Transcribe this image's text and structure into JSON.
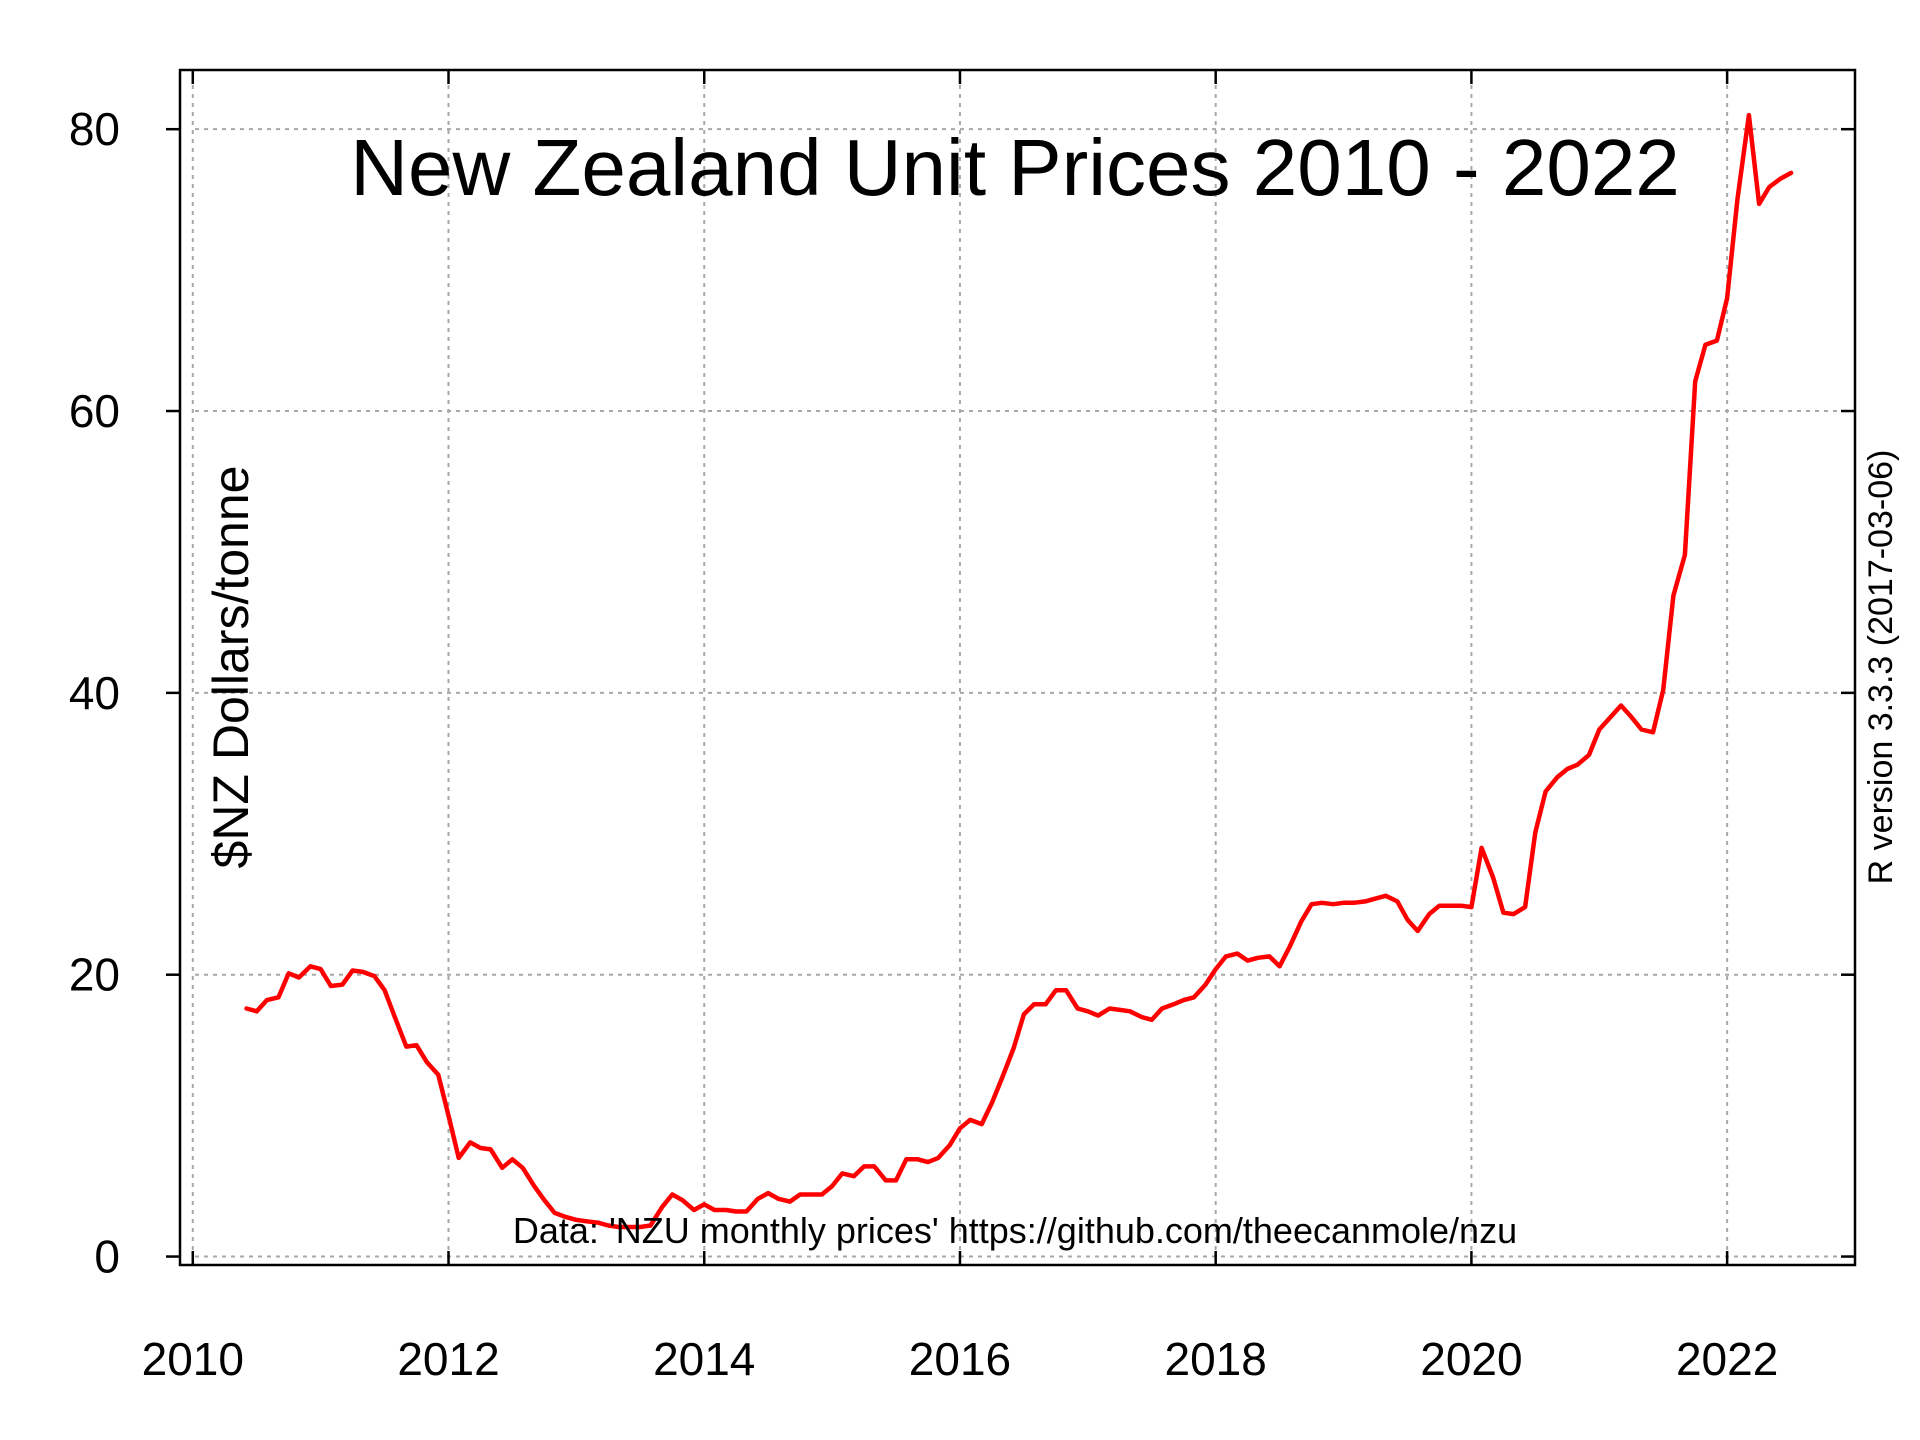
{
  "chart_data": {
    "type": "line",
    "title": "New Zealand Unit Prices 2010 - 2022",
    "xlabel": "",
    "ylabel": "$NZ Dollars/tonne",
    "side_note": "R version 3.3.3 (2017-03-06)",
    "source_note": "Data: 'NZU monthly prices' https://github.com/theecanmole/nzu",
    "xlim": [
      2009.9,
      2023.0
    ],
    "ylim": [
      -0.6,
      84.2
    ],
    "x_ticks": [
      2010,
      2012,
      2014,
      2016,
      2018,
      2020,
      2022
    ],
    "x_tick_labels": [
      "2010",
      "2012",
      "2014",
      "2016",
      "2018",
      "2020",
      "2022"
    ],
    "y_ticks": [
      0,
      20,
      40,
      60,
      80
    ],
    "y_tick_labels": [
      "0",
      "20",
      "40",
      "60",
      "80"
    ],
    "grid": true,
    "line_color": "#ff0000",
    "series": [
      {
        "x": [
          2010.42,
          2010.5,
          2010.58,
          2010.67,
          2010.75,
          2010.83,
          2010.92,
          2011.0,
          2011.08,
          2011.17,
          2011.25,
          2011.33,
          2011.42,
          2011.5,
          2011.58,
          2011.67,
          2011.75,
          2011.83,
          2011.92,
          2012.0,
          2012.08,
          2012.17,
          2012.25,
          2012.33,
          2012.42,
          2012.5,
          2012.58,
          2012.67,
          2012.75,
          2012.83,
          2012.92,
          2013.0,
          2013.08,
          2013.17,
          2013.25,
          2013.33,
          2013.42,
          2013.5,
          2013.58,
          2013.67,
          2013.75,
          2013.83,
          2013.92,
          2014.0,
          2014.08,
          2014.17,
          2014.25,
          2014.33,
          2014.42,
          2014.5,
          2014.58,
          2014.67,
          2014.75,
          2014.83,
          2014.92,
          2015.0,
          2015.08,
          2015.17,
          2015.25,
          2015.33,
          2015.42,
          2015.5,
          2015.58,
          2015.67,
          2015.75,
          2015.83,
          2015.92,
          2016.0,
          2016.08,
          2016.17,
          2016.25,
          2016.33,
          2016.42,
          2016.5,
          2016.58,
          2016.67,
          2016.75,
          2016.83,
          2016.92,
          2017.0,
          2017.08,
          2017.17,
          2017.25,
          2017.33,
          2017.42,
          2017.5,
          2017.58,
          2017.67,
          2017.75,
          2017.83,
          2017.92,
          2018.0,
          2018.08,
          2018.17,
          2018.25,
          2018.33,
          2018.42,
          2018.5,
          2018.58,
          2018.67,
          2018.75,
          2018.83,
          2018.92,
          2019.0,
          2019.08,
          2019.17,
          2019.25,
          2019.33,
          2019.42,
          2019.5,
          2019.58,
          2019.67,
          2019.75,
          2019.83,
          2019.92,
          2020.0,
          2020.08,
          2020.17,
          2020.25,
          2020.33,
          2020.42,
          2020.5,
          2020.58,
          2020.67,
          2020.75,
          2020.83,
          2020.92,
          2021.0,
          2021.08,
          2021.17,
          2021.25,
          2021.33,
          2021.42,
          2021.5,
          2021.58,
          2021.67,
          2021.75,
          2021.83,
          2021.92,
          2022.0,
          2022.08,
          2022.17,
          2022.25,
          2022.33,
          2022.42,
          2022.5
        ],
        "y": [
          17.6,
          17.4,
          18.2,
          18.4,
          20.1,
          19.8,
          20.6,
          20.4,
          19.2,
          19.3,
          20.3,
          20.2,
          19.9,
          18.9,
          17.0,
          14.9,
          15.0,
          13.8,
          12.9,
          10.0,
          7.0,
          8.1,
          7.7,
          7.6,
          6.3,
          6.9,
          6.3,
          5.0,
          4.0,
          3.1,
          2.8,
          2.6,
          2.5,
          2.4,
          2.2,
          2.1,
          2.1,
          2.1,
          2.2,
          3.5,
          4.4,
          4.0,
          3.3,
          3.7,
          3.3,
          3.3,
          3.2,
          3.2,
          4.1,
          4.5,
          4.1,
          3.9,
          4.4,
          4.4,
          4.4,
          5.0,
          5.9,
          5.7,
          6.4,
          6.4,
          5.4,
          5.4,
          6.9,
          6.9,
          6.7,
          7.0,
          7.9,
          9.1,
          9.7,
          9.4,
          10.9,
          12.7,
          14.8,
          17.2,
          17.9,
          17.9,
          18.9,
          18.9,
          17.6,
          17.4,
          17.1,
          17.6,
          17.5,
          17.4,
          17.0,
          16.8,
          17.6,
          17.9,
          18.2,
          18.4,
          19.3,
          20.4,
          21.3,
          21.5,
          21.0,
          21.2,
          21.3,
          20.6,
          22.0,
          23.8,
          25.0,
          25.1,
          25.0,
          25.1,
          25.1,
          25.2,
          25.4,
          25.6,
          25.2,
          23.9,
          23.1,
          24.3,
          24.9,
          24.9,
          24.9,
          24.8,
          29.0,
          26.9,
          24.4,
          24.3,
          24.8,
          30.1,
          33.0,
          34.0,
          34.6,
          34.9,
          35.6,
          37.4,
          38.2,
          39.1,
          38.3,
          37.4,
          37.2,
          40.2,
          46.9,
          49.8,
          62.1,
          64.7,
          65.0,
          68.0,
          75.0,
          81.0,
          74.7,
          75.9,
          76.5,
          76.9
        ]
      }
    ]
  }
}
